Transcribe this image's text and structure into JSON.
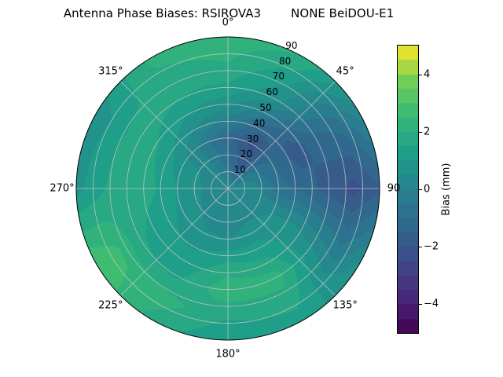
{
  "figure": {
    "title": "Antenna Phase Biases: RSIROVA3        NONE BeiDOU-E1",
    "background": "#ffffff"
  },
  "chart_data": {
    "type": "heatmap",
    "subtype": "filled-contour-polar",
    "title": "Antenna Phase Biases: RSIROVA3        NONE BeiDOU-E1",
    "azimuth_deg": [
      0,
      30,
      60,
      90,
      120,
      150,
      180,
      210,
      240,
      270,
      300,
      330
    ],
    "zenith_deg": [
      0,
      15,
      30,
      45,
      60,
      75,
      90
    ],
    "values_mm": [
      [
        0.2,
        0.2,
        0.2,
        0.2,
        0.2,
        0.2,
        0.2,
        0.2,
        0.2,
        0.2,
        0.2,
        0.2
      ],
      [
        -0.8,
        -1.8,
        -0.3,
        0.3,
        0.3,
        0.2,
        0.0,
        0.2,
        0.4,
        0.5,
        0.4,
        0.0
      ],
      [
        -1.2,
        -2.2,
        -1.0,
        -0.8,
        0.5,
        0.8,
        0.5,
        0.6,
        0.9,
        1.0,
        0.7,
        -0.2
      ],
      [
        0.3,
        -0.8,
        -1.8,
        -1.2,
        0.6,
        1.4,
        1.6,
        1.1,
        1.2,
        1.6,
        1.4,
        0.8
      ],
      [
        1.4,
        0.6,
        -1.2,
        -1.8,
        0.2,
        2.2,
        2.4,
        1.4,
        1.6,
        2.0,
        1.9,
        1.5
      ],
      [
        2.0,
        1.2,
        -0.8,
        -2.2,
        -0.3,
        1.8,
        1.6,
        2.2,
        2.6,
        1.4,
        1.2,
        1.8
      ],
      [
        2.4,
        2.0,
        0.3,
        -1.6,
        0.6,
        1.2,
        1.0,
        1.8,
        3.0,
        0.8,
        0.6,
        2.2
      ]
    ],
    "value_range": [
      -5,
      5
    ],
    "contour_step_mm": 0.5,
    "theta_tick_angles_deg": [
      0,
      45,
      90,
      135,
      180,
      225,
      270,
      315
    ],
    "theta_tick_labels": [
      "0°",
      "45°",
      "90",
      "135°",
      "180°",
      "225°",
      "270°",
      "315°"
    ],
    "radial_tick_values": [
      10,
      20,
      30,
      40,
      50,
      60,
      70,
      80,
      90
    ],
    "radial_tick_labels": [
      "10",
      "20",
      "30",
      "40",
      "50",
      "60",
      "70",
      "80",
      "90"
    ],
    "radial_label_angle_deg": 22.5,
    "grid_color": "rgba(200,200,200,0.9)",
    "outline_color": "#000000",
    "colormap_stops": [
      [
        0.0,
        "#440154"
      ],
      [
        0.125,
        "#482878"
      ],
      [
        0.25,
        "#3e4a89"
      ],
      [
        0.375,
        "#31688e"
      ],
      [
        0.5,
        "#26828e"
      ],
      [
        0.625,
        "#1f9e89"
      ],
      [
        0.75,
        "#35b779"
      ],
      [
        0.875,
        "#6ece58"
      ],
      [
        1.0,
        "#fde725"
      ]
    ],
    "colorbar": {
      "label": "Bias (mm)",
      "min": -5,
      "max": 5,
      "tick_values": [
        4,
        2,
        0,
        -2,
        -4
      ],
      "tick_labels": [
        "4",
        "2",
        "0",
        "−2",
        "−4"
      ],
      "colormap": "viridis"
    }
  }
}
